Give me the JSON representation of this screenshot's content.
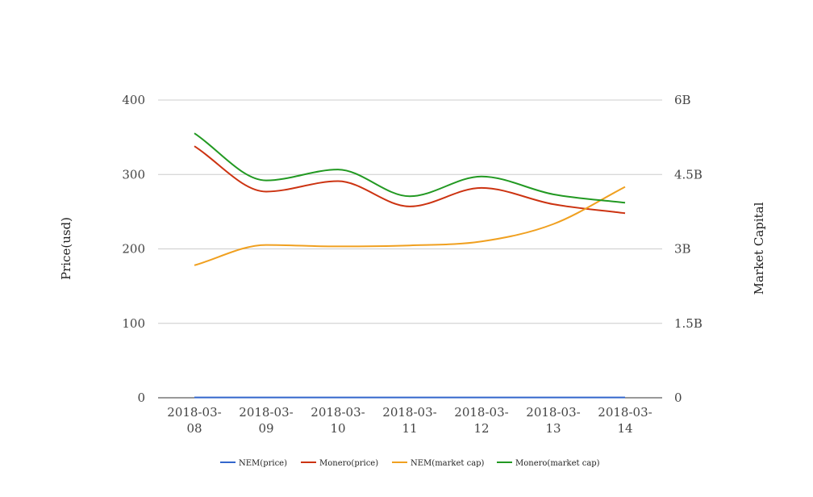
{
  "chart_data": {
    "type": "line",
    "x": [
      "2018-03-08",
      "2018-03-09",
      "2018-03-10",
      "2018-03-11",
      "2018-03-12",
      "2018-03-13",
      "2018-03-14"
    ],
    "x_tick_labels": [
      [
        "2018-03-",
        "08"
      ],
      [
        "2018-03-",
        "09"
      ],
      [
        "2018-03-",
        "10"
      ],
      [
        "2018-03-",
        "11"
      ],
      [
        "2018-03-",
        "12"
      ],
      [
        "2018-03-",
        "13"
      ],
      [
        "2018-03-",
        "14"
      ]
    ],
    "ylabel_left": "Price(usd)",
    "ylabel_right": "Market Capital",
    "ylim_left": [
      0,
      400
    ],
    "ylim_right": [
      0,
      6000000000
    ],
    "y_ticks_left": [
      "0",
      "100",
      "200",
      "300",
      "400"
    ],
    "y_ticks_right": [
      "0",
      "1.5B",
      "3B",
      "4.5B",
      "6B"
    ],
    "grid": true,
    "legend_position": "bottom",
    "series": [
      {
        "name": "NEM(price)",
        "axis": "left",
        "color": "#3366cc",
        "values": [
          0.37,
          0.34,
          0.34,
          0.34,
          0.35,
          0.39,
          0.47
        ]
      },
      {
        "name": "Monero(price)",
        "axis": "left",
        "color": "#cc3311",
        "values": [
          338,
          277,
          291,
          257,
          282,
          260,
          248
        ]
      },
      {
        "name": "NEM(market cap)",
        "axis": "right",
        "color": "#f0a020",
        "values": [
          2670000000,
          3080000000,
          3050000000,
          3070000000,
          3150000000,
          3500000000,
          4250000000
        ]
      },
      {
        "name": "Monero(market cap)",
        "axis": "right",
        "color": "#229922",
        "values": [
          5330000000,
          4380000000,
          4600000000,
          4060000000,
          4460000000,
          4100000000,
          3930000000
        ]
      }
    ]
  }
}
